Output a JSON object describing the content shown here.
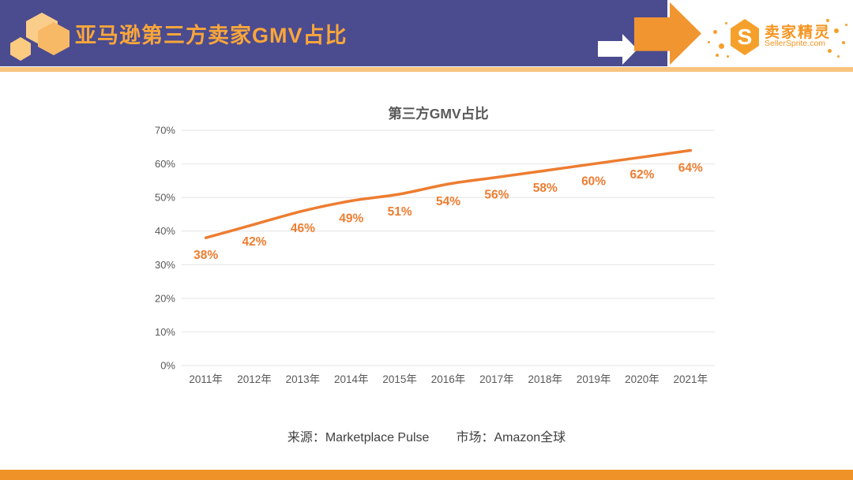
{
  "header": {
    "title": "亚马逊第三方卖家GMV占比"
  },
  "logo": {
    "monogram": "S",
    "brand_cn": "卖家精灵",
    "brand_en": "SellerSprite.com"
  },
  "chart_data": {
    "type": "line",
    "title": "第三方GMV占比",
    "categories": [
      "2011年",
      "2012年",
      "2013年",
      "2014年",
      "2015年",
      "2016年",
      "2017年",
      "2018年",
      "2019年",
      "2020年",
      "2021年"
    ],
    "series": [
      {
        "name": "第三方GMV占比",
        "values": [
          38,
          42,
          46,
          49,
          51,
          54,
          56,
          58,
          60,
          62,
          64
        ]
      }
    ],
    "data_labels": [
      "38%",
      "42%",
      "46%",
      "49%",
      "51%",
      "54%",
      "56%",
      "58%",
      "60%",
      "62%",
      "64%"
    ],
    "xlabel": "",
    "ylabel": "",
    "ylim": [
      0,
      70
    ],
    "y_tick_step": 10,
    "y_tick_labels": [
      "0%",
      "10%",
      "20%",
      "30%",
      "40%",
      "50%",
      "60%",
      "70%"
    ],
    "grid": true,
    "legend": "none",
    "line_color": "#ED7D31",
    "label_color": "#ED7D31",
    "axis_text_color": "#595959",
    "gridline_color": "#E4E4E4"
  },
  "footer": {
    "source": "来源：Marketplace Pulse",
    "market": "市场：Amazon全球"
  },
  "colors": {
    "header_bg": "#4B4B8F",
    "header_title": "#F9A63A",
    "accent_orange": "#F0952F",
    "underline_orange": "#F8C47E",
    "bottom_bar": "#EF9227"
  }
}
